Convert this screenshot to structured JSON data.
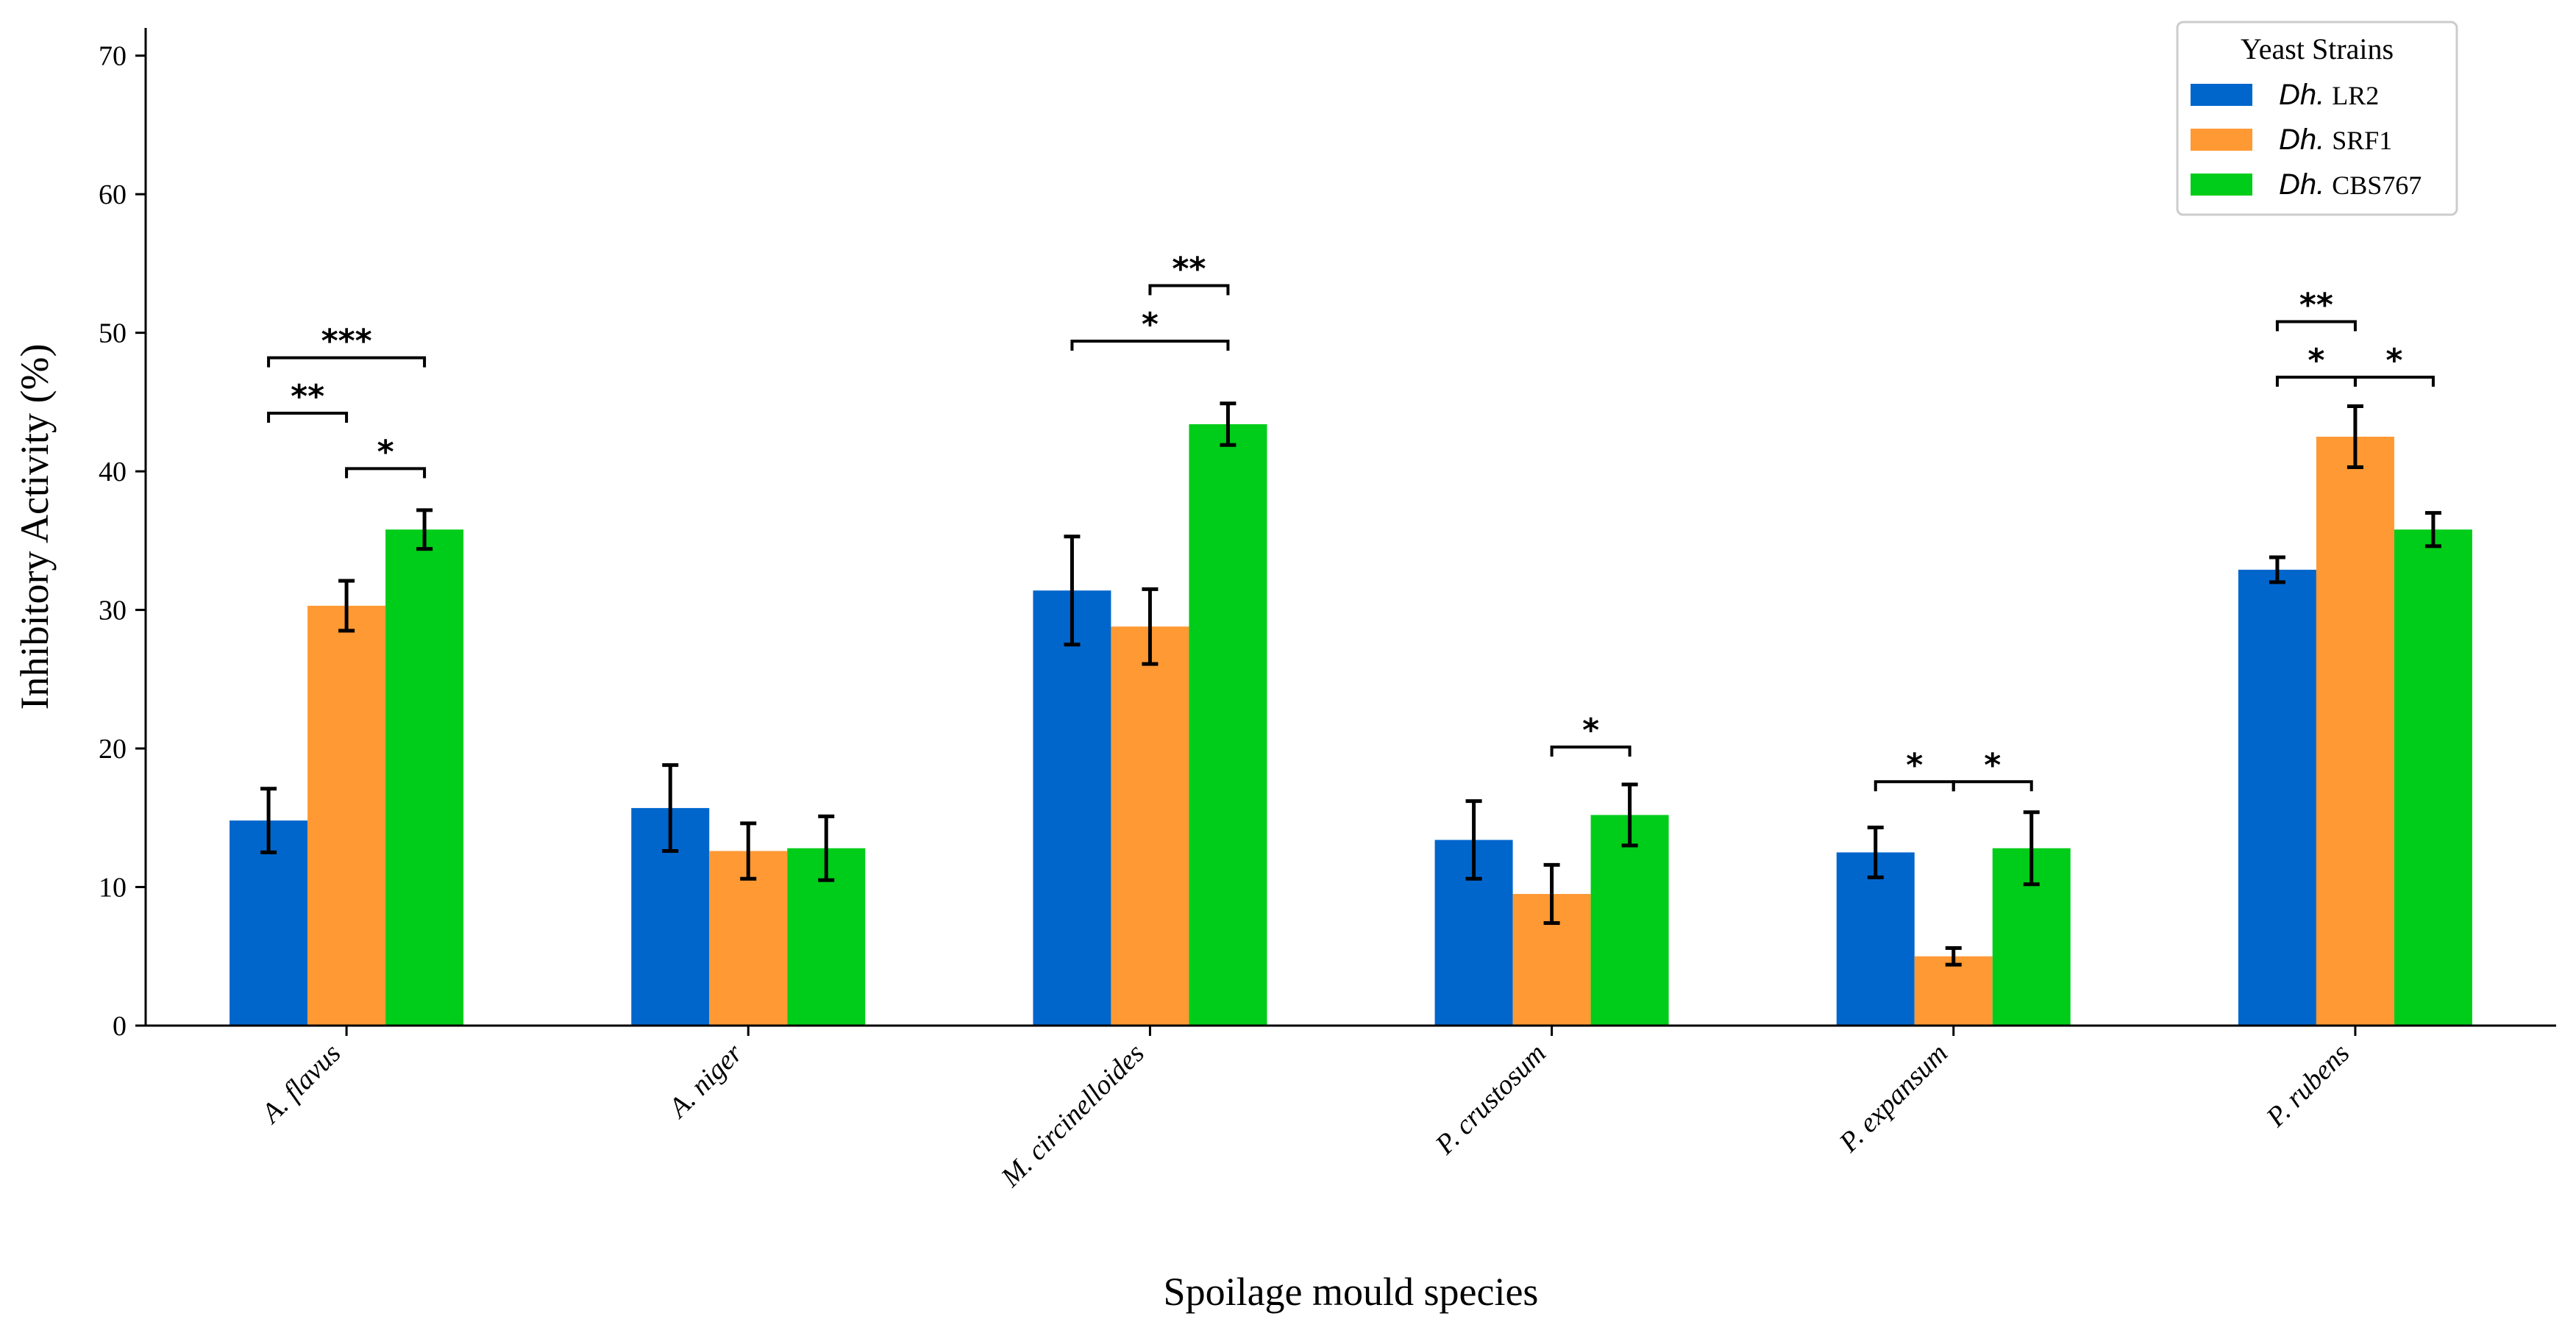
{
  "chart_data": {
    "type": "bar",
    "xlabel": "Spoilage mould species",
    "ylabel": "Inhibitory Activity (%)",
    "ylim": [
      0,
      72
    ],
    "yticks": [
      0,
      10,
      20,
      30,
      40,
      50,
      60,
      70
    ],
    "grid": false,
    "categories": [
      "A. flavus",
      "A. niger",
      "M. circinelloides",
      "P. crustosum",
      "P. expansum",
      "P. rubens"
    ],
    "legend": {
      "title": "Yeast Strains",
      "placement": "top-right"
    },
    "series": [
      {
        "name": "Dh. LR2",
        "name_genus": "Dh.",
        "name_strain": "LR2",
        "color": "#0066cc",
        "values": [
          14.8,
          15.7,
          31.4,
          13.4,
          12.5,
          32.9
        ],
        "errors": [
          2.3,
          3.1,
          3.9,
          2.8,
          1.8,
          0.9
        ]
      },
      {
        "name": "Dh. SRF1",
        "name_genus": "Dh.",
        "name_strain": "SRF1",
        "color": "#ff9933",
        "values": [
          30.3,
          12.6,
          28.8,
          9.5,
          5.0,
          42.5
        ],
        "errors": [
          1.8,
          2.0,
          2.7,
          2.1,
          0.6,
          2.2
        ]
      },
      {
        "name": "Dh. CBS767",
        "name_genus": "Dh.",
        "name_strain": "CBS767",
        "color": "#00cc1a",
        "values": [
          35.8,
          12.8,
          43.4,
          15.2,
          12.8,
          35.8
        ],
        "errors": [
          1.4,
          2.3,
          1.5,
          2.2,
          2.6,
          1.2
        ]
      }
    ],
    "significance": [
      {
        "category": "A. flavus",
        "from": 0,
        "to": 2,
        "y": 48.2,
        "label": "***"
      },
      {
        "category": "A. flavus",
        "from": 0,
        "to": 1,
        "y": 44.2,
        "label": "**"
      },
      {
        "category": "A. flavus",
        "from": 1,
        "to": 2,
        "y": 40.2,
        "label": "*"
      },
      {
        "category": "M. circinelloides",
        "from": 1,
        "to": 2,
        "y": 53.4,
        "label": "**"
      },
      {
        "category": "M. circinelloides",
        "from": 0,
        "to": 2,
        "y": 49.4,
        "label": "*"
      },
      {
        "category": "P. crustosum",
        "from": 1,
        "to": 2,
        "y": 20.1,
        "label": "*"
      },
      {
        "category": "P. expansum",
        "from": 0,
        "to": 1,
        "y": 17.6,
        "label": "*"
      },
      {
        "category": "P. expansum",
        "from": 1,
        "to": 2,
        "y": 17.6,
        "label": "*"
      },
      {
        "category": "P. rubens",
        "from": 0,
        "to": 1,
        "y": 50.8,
        "label": "**"
      },
      {
        "category": "P. rubens",
        "from": 0,
        "to": 1,
        "y": 46.8,
        "label": "*"
      },
      {
        "category": "P. rubens",
        "from": 1,
        "to": 2,
        "y": 46.8,
        "label": "*"
      }
    ]
  }
}
